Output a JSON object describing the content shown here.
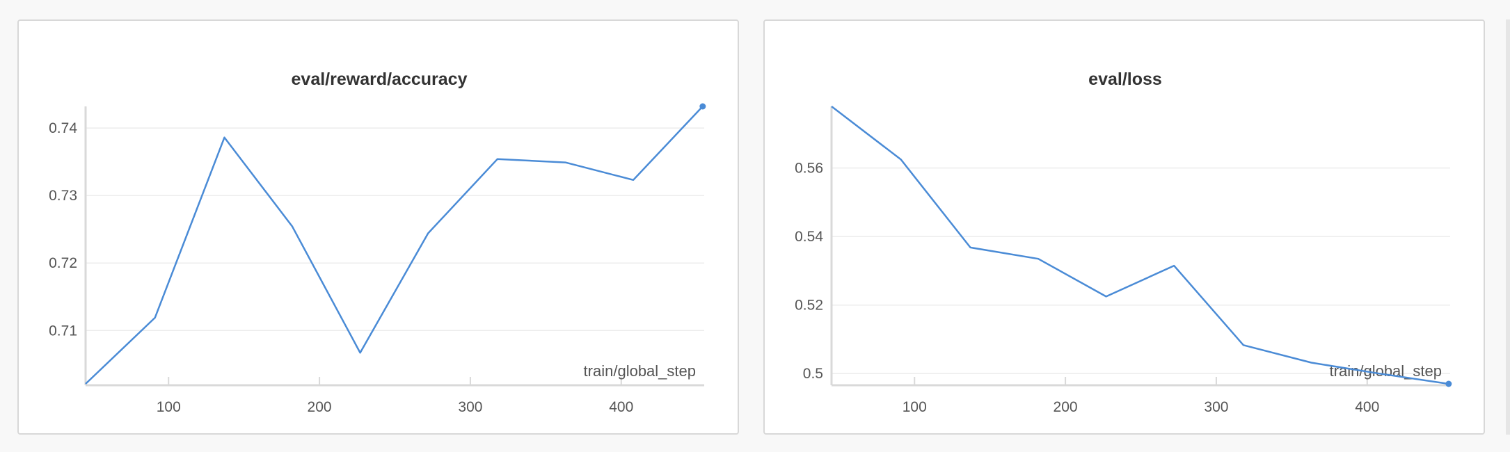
{
  "colors": {
    "series": "#4a8bd6",
    "background": "#f8f8f8",
    "panel": "#ffffff"
  },
  "chart_data": [
    {
      "type": "line",
      "title": "eval/reward/accuracy",
      "xlabel": "train/global_step",
      "ylabel": "",
      "xlim": [
        45,
        455
      ],
      "ylim": [
        0.7021,
        0.7432
      ],
      "xticks": [
        100,
        200,
        300,
        400
      ],
      "yticks": [
        0.71,
        0.72,
        0.73,
        0.74
      ],
      "ytick_labels": [
        "0.71",
        "0.72",
        "0.73",
        "0.74"
      ],
      "grid": true,
      "series": [
        {
          "x": [
            45,
            91,
            137,
            182,
            227,
            272,
            318,
            363,
            408,
            454
          ],
          "y": [
            0.7021,
            0.7119,
            0.7386,
            0.7254,
            0.7067,
            0.7244,
            0.7354,
            0.7349,
            0.7323,
            0.7432
          ]
        }
      ]
    },
    {
      "type": "line",
      "title": "eval/loss",
      "xlabel": "train/global_step",
      "ylabel": "",
      "xlim": [
        45,
        455
      ],
      "ylim": [
        0.497,
        0.578
      ],
      "xticks": [
        100,
        200,
        300,
        400
      ],
      "yticks": [
        0.5,
        0.52,
        0.54,
        0.56
      ],
      "ytick_labels": [
        "0.5",
        "0.52",
        "0.54",
        "0.56"
      ],
      "grid": true,
      "series": [
        {
          "x": [
            45,
            91,
            137,
            182,
            227,
            272,
            318,
            363,
            408,
            454
          ],
          "y": [
            0.578,
            0.5625,
            0.5368,
            0.5335,
            0.5225,
            0.5315,
            0.5083,
            0.5032,
            0.5,
            0.497
          ]
        }
      ]
    }
  ]
}
